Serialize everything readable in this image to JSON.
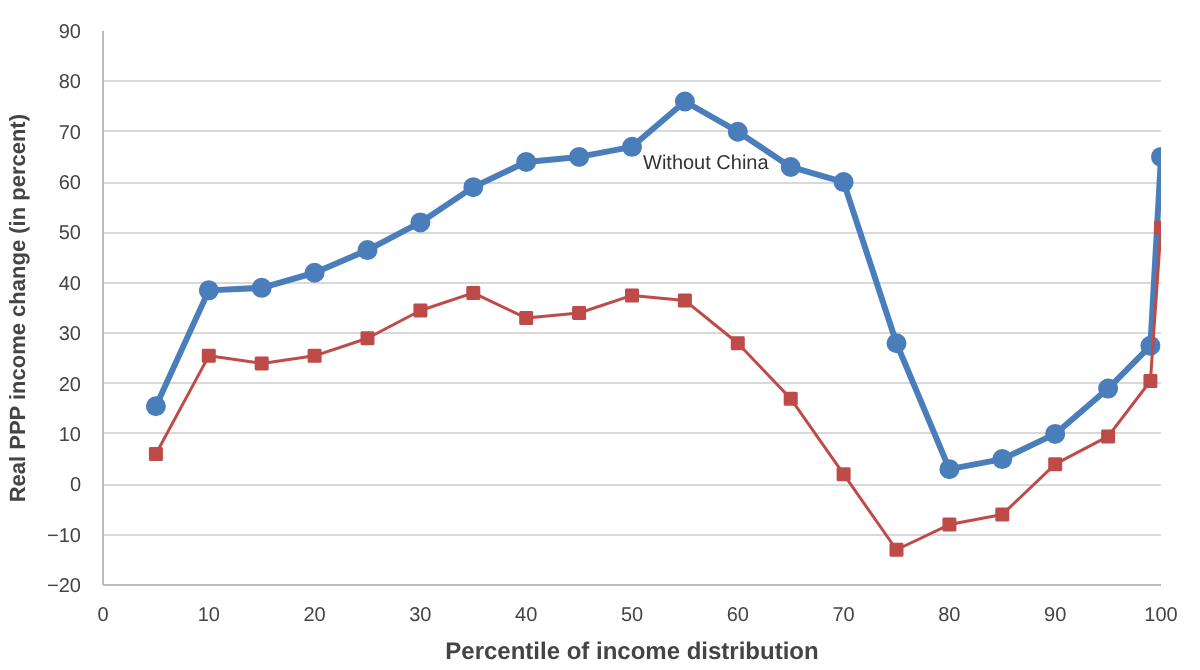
{
  "chart_data": {
    "type": "line",
    "xlabel": "Percentile of income distribution",
    "ylabel": "Real PPP income change (in percent)",
    "xlim": [
      0,
      100
    ],
    "xticks": [
      0,
      10,
      20,
      30,
      40,
      50,
      60,
      70,
      80,
      90,
      100
    ],
    "ylim": [
      -20,
      90
    ],
    "yticks": [
      -20,
      -10,
      0,
      10,
      20,
      30,
      40,
      50,
      60,
      70,
      80,
      90
    ],
    "grid": "y",
    "x": [
      5,
      10,
      15,
      20,
      25,
      30,
      35,
      40,
      45,
      50,
      55,
      60,
      65,
      70,
      75,
      80,
      85,
      90,
      95,
      99,
      100
    ],
    "series": [
      {
        "color": "#4a7ebb",
        "marker": "circle",
        "values": [
          15.5,
          38.5,
          39,
          42,
          46.5,
          52,
          59,
          64,
          65,
          67,
          76,
          70,
          63,
          60,
          28,
          3,
          5,
          10,
          19,
          27.5,
          65
        ]
      },
      {
        "color": "#be4b48",
        "marker": "square",
        "values": [
          6,
          25.5,
          24,
          25.5,
          29,
          34.5,
          38,
          33,
          34,
          37.5,
          36.5,
          28,
          17,
          2,
          -13,
          -8,
          -6,
          4,
          9.5,
          20.5,
          51
        ]
      }
    ],
    "annotations": [
      "Without China"
    ]
  }
}
